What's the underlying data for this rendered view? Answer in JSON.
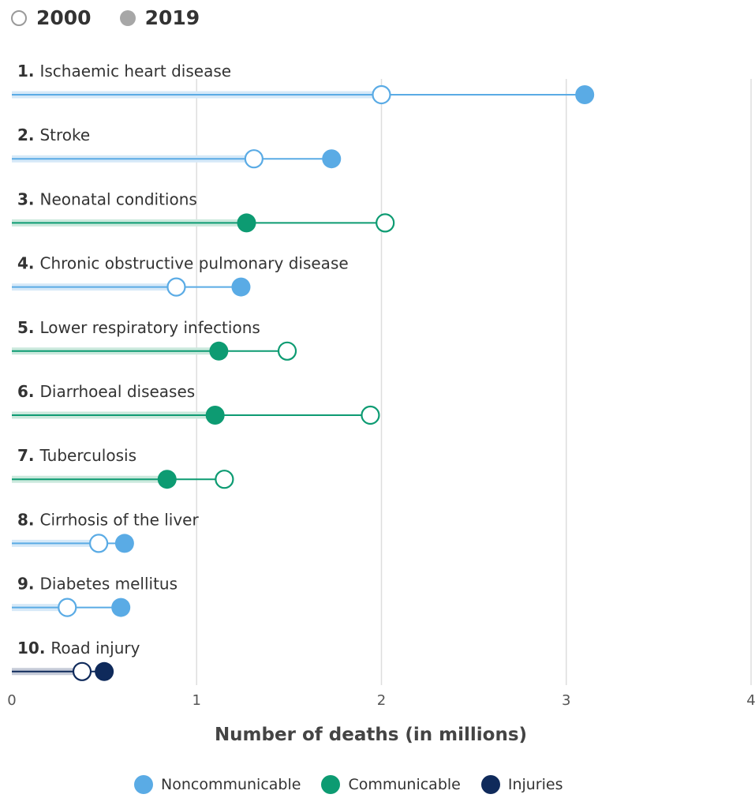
{
  "legend_years": {
    "open_label": "2000",
    "filled_label": "2019"
  },
  "categories_legend": [
    {
      "label": "Noncommunicable",
      "color": "#5aabe5"
    },
    {
      "label": "Communicable",
      "color": "#0d9b72"
    },
    {
      "label": "Injuries",
      "color": "#0f2a5b"
    }
  ],
  "chart_data": {
    "type": "dumbbell",
    "xlabel": "Number of deaths (in millions)",
    "xlim": [
      0,
      4
    ],
    "xticks": [
      "0",
      "1",
      "2",
      "3",
      "4"
    ],
    "grid": true,
    "rows": [
      {
        "rank": "1.",
        "label": "Ischaemic heart disease",
        "category": "Noncommunicable",
        "v2000": 2.0,
        "v2019": 3.1
      },
      {
        "rank": "2.",
        "label": "Stroke",
        "category": "Noncommunicable",
        "v2000": 1.31,
        "v2019": 1.73
      },
      {
        "rank": "3.",
        "label": "Neonatal conditions",
        "category": "Communicable",
        "v2000": 2.02,
        "v2019": 1.27
      },
      {
        "rank": "4.",
        "label": "Chronic obstructive pulmonary disease",
        "category": "Noncommunicable",
        "v2000": 0.89,
        "v2019": 1.24
      },
      {
        "rank": "5.",
        "label": "Lower respiratory infections",
        "category": "Communicable",
        "v2000": 1.49,
        "v2019": 1.12
      },
      {
        "rank": "6.",
        "label": "Diarrhoeal diseases",
        "category": "Communicable",
        "v2000": 1.94,
        "v2019": 1.1
      },
      {
        "rank": "7.",
        "label": "Tuberculosis",
        "category": "Communicable",
        "v2000": 1.15,
        "v2019": 0.84
      },
      {
        "rank": "8.",
        "label": "Cirrhosis of the liver",
        "category": "Noncommunicable",
        "v2000": 0.47,
        "v2019": 0.61
      },
      {
        "rank": "9.",
        "label": "Diabetes mellitus",
        "category": "Noncommunicable",
        "v2000": 0.3,
        "v2019": 0.59
      },
      {
        "rank": "10.",
        "label": "Road injury",
        "category": "Injuries",
        "v2000": 0.38,
        "v2019": 0.5
      }
    ]
  }
}
